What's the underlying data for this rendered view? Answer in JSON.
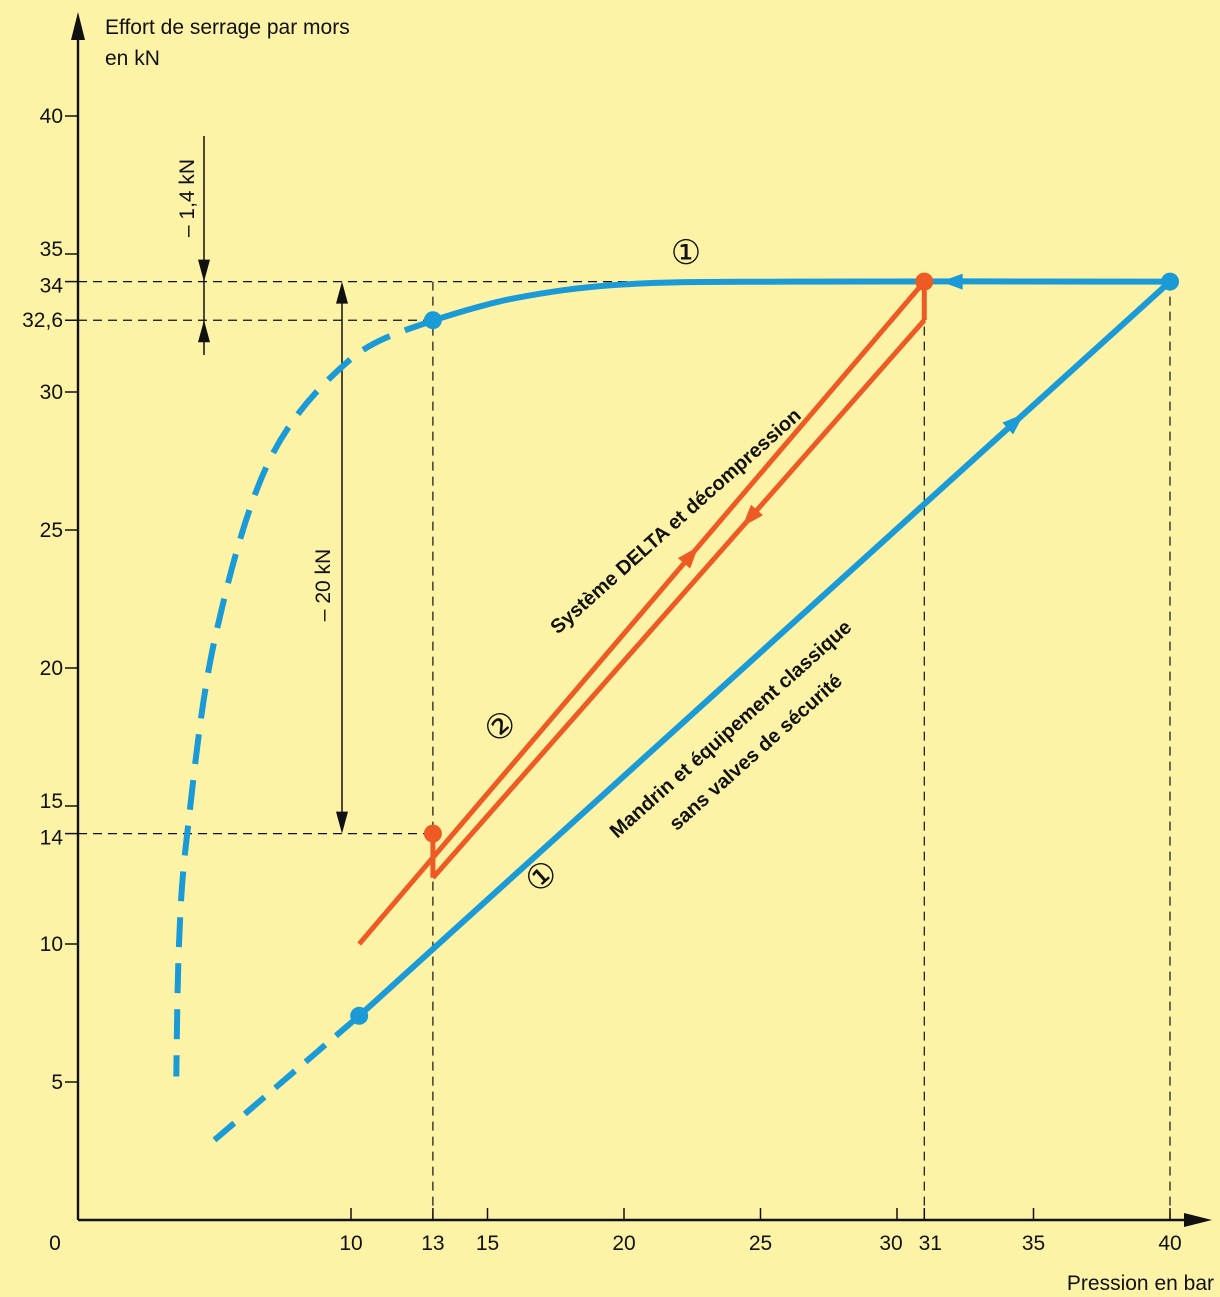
{
  "chart_data": {
    "type": "line",
    "xlabel": "Pression en bar",
    "ylabel_line1": "Effort de serrage par mors",
    "ylabel_line2": "en kN",
    "xlim": [
      0,
      41
    ],
    "ylim": [
      0,
      43
    ],
    "x_ticks": [
      {
        "value": 0,
        "label": "0"
      },
      {
        "value": 10,
        "label": "10"
      },
      {
        "value": 13,
        "label": "13"
      },
      {
        "value": 15,
        "label": "15"
      },
      {
        "value": 20,
        "label": "20"
      },
      {
        "value": 25,
        "label": "25"
      },
      {
        "value": 30,
        "label": "30"
      },
      {
        "value": 31,
        "label": "31"
      },
      {
        "value": 35,
        "label": "35"
      },
      {
        "value": 40,
        "label": "40"
      }
    ],
    "y_ticks": [
      {
        "value": 5,
        "label": "5"
      },
      {
        "value": 10,
        "label": "10"
      },
      {
        "value": 14,
        "label": "14"
      },
      {
        "value": 15,
        "label": "15"
      },
      {
        "value": 20,
        "label": "20"
      },
      {
        "value": 25,
        "label": "25"
      },
      {
        "value": 30,
        "label": "30"
      },
      {
        "value": 32.6,
        "label": "32,6"
      },
      {
        "value": 34,
        "label": "34"
      },
      {
        "value": 35,
        "label": "35"
      },
      {
        "value": 40,
        "label": "40"
      }
    ],
    "series": [
      {
        "name": "Mandrin et équipement classique sans valves de sécurité",
        "marker": "①",
        "color": "#1a9ad6",
        "rise_dashed": [
          [
            5,
            2.9
          ],
          [
            10.3,
            7.4
          ]
        ],
        "rise": [
          [
            10.3,
            7.4
          ],
          [
            40,
            34
          ]
        ],
        "hold": [
          [
            40,
            34
          ],
          [
            26,
            34
          ],
          [
            20,
            33.9
          ],
          [
            16,
            33.4
          ],
          [
            13,
            32.6
          ]
        ],
        "decay_dashed": [
          [
            13,
            32.6
          ],
          [
            10,
            31.2
          ],
          [
            7,
            27.5
          ],
          [
            5,
            21
          ],
          [
            4,
            14
          ],
          [
            3.7,
            10
          ],
          [
            3.6,
            5.2
          ]
        ],
        "points": [
          [
            10.3,
            7.4
          ],
          [
            40,
            34
          ],
          [
            13,
            32.6
          ]
        ]
      },
      {
        "name": "Système DELTA et décompression",
        "marker": "②",
        "color": "#ee5a24",
        "rise": [
          [
            10.3,
            10
          ],
          [
            31,
            34
          ]
        ],
        "decompression_drop": [
          [
            31,
            34
          ],
          [
            31,
            32.6
          ]
        ],
        "release": [
          [
            31,
            32.6
          ],
          [
            13,
            12.4
          ]
        ],
        "lift": [
          [
            13,
            12.4
          ],
          [
            13,
            14
          ]
        ],
        "points": [
          [
            31,
            34
          ],
          [
            13,
            14
          ]
        ]
      }
    ],
    "reference_lines": {
      "y": [
        34,
        32.6,
        14
      ],
      "x": [
        13,
        31,
        40
      ]
    },
    "annotations": {
      "drop_small": "– 1,4 kN",
      "drop_large": "– 20 kN",
      "series1_line1": "Mandrin et équipement classique",
      "series1_line2": "sans valves de sécurité",
      "series1_marker": "①",
      "series2_label": "Système DELTA et décompression",
      "series2_marker": "②"
    },
    "grid": false,
    "colors": {
      "background": "#fdf3a6",
      "series1": "#1a9ad6",
      "series2": "#ee5a24",
      "axis": "#111111"
    }
  }
}
